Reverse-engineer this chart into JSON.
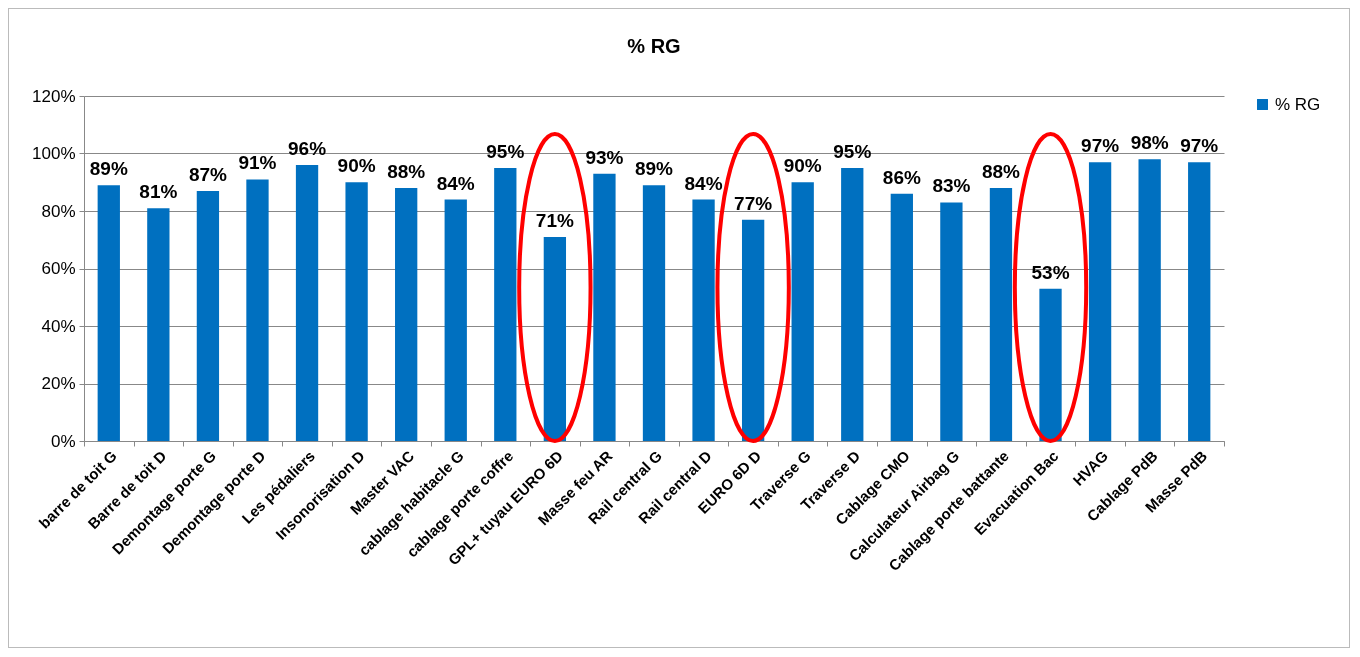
{
  "chart_data": {
    "type": "bar",
    "title": "% RG",
    "categories": [
      "barre de toit G",
      "Barre de toit D",
      "Demontage porte G",
      "Demontage porte D",
      "Les pédaliers",
      "Insonorisation D",
      "Master VAC",
      "cablage habitacle G",
      "cablage porte coffre",
      "GPL+ tuyau EURO 6D",
      "Masse feu AR",
      "Rail central G",
      "Rail central D",
      "EURO 6D D",
      "Traverse G",
      "Traverse D",
      "Cablage CMO",
      "Calculateur Airbag G",
      "Cablage porte battante",
      "Evacuation Bac",
      "HVAG",
      "Cablage PdB",
      "Masse PdB"
    ],
    "series": [
      {
        "name": "% RG",
        "color": "#0070c0",
        "values": [
          89,
          81,
          87,
          91,
          96,
          90,
          88,
          84,
          95,
          71,
          93,
          89,
          84,
          77,
          90,
          95,
          86,
          83,
          88,
          53,
          97,
          98,
          97
        ]
      }
    ],
    "value_labels": [
      "89%",
      "81%",
      "87%",
      "91%",
      "96%",
      "90%",
      "88%",
      "84%",
      "95%",
      "71%",
      "93%",
      "89%",
      "84%",
      "77%",
      "90%",
      "95%",
      "86%",
      "83%",
      "88%",
      "53%",
      "97%",
      "98%",
      "97%"
    ],
    "ylim": [
      0,
      120
    ],
    "yticks": [
      {
        "value": 0,
        "label": "0%"
      },
      {
        "value": 20,
        "label": "20%"
      },
      {
        "value": 40,
        "label": "40%"
      },
      {
        "value": 60,
        "label": "60%"
      },
      {
        "value": 80,
        "label": "80%"
      },
      {
        "value": 100,
        "label": "100%"
      },
      {
        "value": 120,
        "label": "120%"
      }
    ],
    "grid": "y",
    "legend": "right"
  }
}
